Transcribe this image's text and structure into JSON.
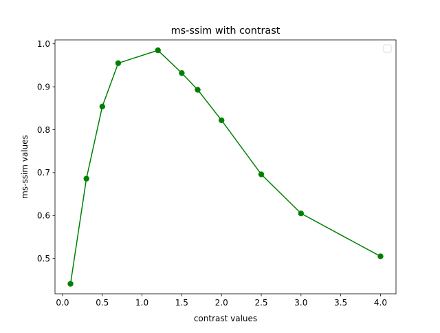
{
  "chart_data": {
    "type": "line",
    "title": "ms-ssim with contrast",
    "xlabel": "contrast values",
    "ylabel": "ms-ssim values",
    "xlim": [
      -0.095,
      4.195
    ],
    "ylim": [
      0.4178,
      1.0092
    ],
    "xticks": [
      "0.0",
      "0.5",
      "1.0",
      "1.5",
      "2.0",
      "2.5",
      "3.0",
      "3.5",
      "4.0"
    ],
    "yticks": [
      "0.5",
      "0.6",
      "0.7",
      "0.8",
      "0.9",
      "1.0"
    ],
    "grid": false,
    "legend": {
      "placement": "top-right",
      "entries": []
    },
    "series": [
      {
        "color": "#008000",
        "marker": "circle",
        "x": [
          0.1,
          0.3,
          0.5,
          0.7,
          1.2,
          1.5,
          1.7,
          2.0,
          2.5,
          3.0,
          4.0
        ],
        "y": [
          0.441,
          0.686,
          0.854,
          0.955,
          0.985,
          0.932,
          0.893,
          0.822,
          0.696,
          0.605,
          0.505
        ]
      }
    ]
  }
}
